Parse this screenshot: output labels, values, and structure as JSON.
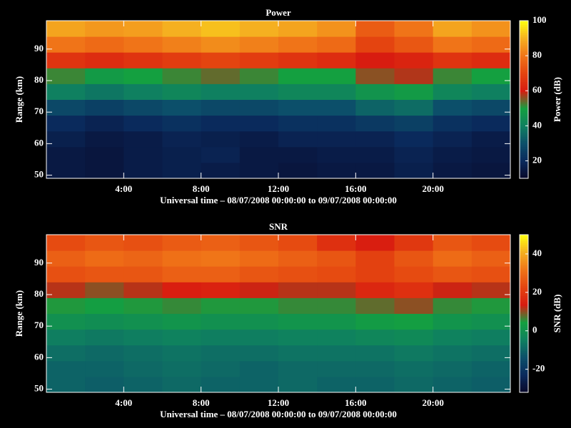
{
  "chart_data": [
    {
      "type": "heatmap",
      "title": "Power",
      "xlabel": "Universal time – 08/07/2008 00:00:00 to 09/07/2008 00:00:00",
      "ylabel": "Range (km)",
      "zlabel": "Power (dB)",
      "x": [
        1,
        3,
        5,
        7,
        9,
        11,
        13,
        15,
        17,
        19,
        21,
        23
      ],
      "y": [
        51.5,
        56.5,
        61.5,
        66.5,
        71.5,
        76.5,
        81.5,
        86.5,
        91.5,
        96.5
      ],
      "z": [
        [
          15,
          14,
          16,
          17,
          16,
          15,
          14,
          15,
          15,
          17,
          15,
          14
        ],
        [
          15,
          14,
          16,
          17,
          18,
          15,
          15,
          16,
          16,
          18,
          16,
          15
        ],
        [
          17,
          15,
          16,
          18,
          17,
          16,
          18,
          18,
          18,
          20,
          18,
          16
        ],
        [
          20,
          18,
          20,
          22,
          20,
          20,
          22,
          22,
          24,
          26,
          22,
          20
        ],
        [
          28,
          26,
          28,
          30,
          28,
          28,
          30,
          30,
          34,
          36,
          30,
          28
        ],
        [
          40,
          38,
          40,
          42,
          40,
          40,
          42,
          42,
          46,
          48,
          42,
          40
        ],
        [
          52,
          48,
          50,
          52,
          54,
          52,
          50,
          50,
          56,
          58,
          52,
          50
        ],
        [
          66,
          64,
          66,
          68,
          70,
          68,
          66,
          64,
          60,
          62,
          66,
          64
        ],
        [
          80,
          78,
          80,
          82,
          84,
          82,
          80,
          78,
          70,
          74,
          80,
          78
        ],
        [
          88,
          86,
          87,
          90,
          92,
          90,
          88,
          85,
          75,
          80,
          88,
          85
        ]
      ],
      "xlim": [
        0,
        24
      ],
      "xticks": [
        {
          "value": 4,
          "label": "4:00"
        },
        {
          "value": 8,
          "label": "8:00"
        },
        {
          "value": 12,
          "label": "12:00"
        },
        {
          "value": 16,
          "label": "16:00"
        },
        {
          "value": 20,
          "label": "20:00"
        }
      ],
      "ylim": [
        49,
        99
      ],
      "yticks": [
        50,
        60,
        70,
        80,
        90
      ],
      "zlim": [
        10,
        100
      ],
      "zticks": [
        20,
        40,
        60,
        80,
        100
      ],
      "colormap": [
        "#08082a",
        "#0a2a5c",
        "#0c4f6a",
        "#0f8060",
        "#14a040",
        "#d81c10",
        "#e44410",
        "#f07418",
        "#f5b020",
        "#ffff10"
      ]
    },
    {
      "type": "heatmap",
      "title": "SNR",
      "xlabel": "Universal time – 08/07/2008 00:00:00 to 09/07/2008 00:00:00",
      "ylabel": "Range (km)",
      "zlabel": "SNR (dB)",
      "x": [
        1,
        3,
        5,
        7,
        9,
        11,
        13,
        15,
        17,
        19,
        21,
        23
      ],
      "y": [
        51.5,
        56.5,
        61.5,
        66.5,
        71.5,
        76.5,
        81.5,
        86.5,
        91.5,
        96.5
      ],
      "z": [
        [
          -10,
          -11,
          -10,
          -9,
          -10,
          -10,
          -9,
          -10,
          -10,
          -9,
          -10,
          -11
        ],
        [
          -10,
          -10,
          -9,
          -8,
          -9,
          -10,
          -9,
          -9,
          -9,
          -8,
          -9,
          -10
        ],
        [
          -8,
          -9,
          -8,
          -7,
          -8,
          -8,
          -7,
          -7,
          -7,
          -6,
          -7,
          -8
        ],
        [
          -5,
          -6,
          -5,
          -4,
          -5,
          -5,
          -4,
          -4,
          -3,
          -2,
          -4,
          -5
        ],
        [
          0,
          -1,
          0,
          1,
          0,
          0,
          1,
          1,
          3,
          4,
          1,
          0
        ],
        [
          5,
          4,
          5,
          6,
          5,
          5,
          6,
          6,
          8,
          10,
          6,
          5
        ],
        [
          12,
          10,
          12,
          14,
          15,
          13,
          12,
          12,
          16,
          18,
          13,
          12
        ],
        [
          25,
          26,
          26,
          28,
          28,
          26,
          25,
          24,
          22,
          24,
          26,
          25
        ],
        [
          28,
          30,
          29,
          31,
          32,
          30,
          28,
          26,
          22,
          26,
          30,
          28
        ],
        [
          24,
          26,
          25,
          27,
          28,
          26,
          24,
          18,
          14,
          20,
          26,
          24
        ]
      ],
      "xlim": [
        0,
        24
      ],
      "xticks": [
        {
          "value": 4,
          "label": "4:00"
        },
        {
          "value": 8,
          "label": "8:00"
        },
        {
          "value": 12,
          "label": "12:00"
        },
        {
          "value": 16,
          "label": "16:00"
        },
        {
          "value": 20,
          "label": "20:00"
        }
      ],
      "ylim": [
        49,
        99
      ],
      "yticks": [
        50,
        60,
        70,
        80,
        90
      ],
      "zlim": [
        -32,
        50
      ],
      "zticks": [
        -20,
        0,
        20,
        40
      ],
      "colormap": [
        "#08082a",
        "#0a2a5c",
        "#0c4f6a",
        "#0f8060",
        "#14a040",
        "#d81c10",
        "#e44410",
        "#f07418",
        "#f5b020",
        "#ffff10"
      ]
    }
  ]
}
